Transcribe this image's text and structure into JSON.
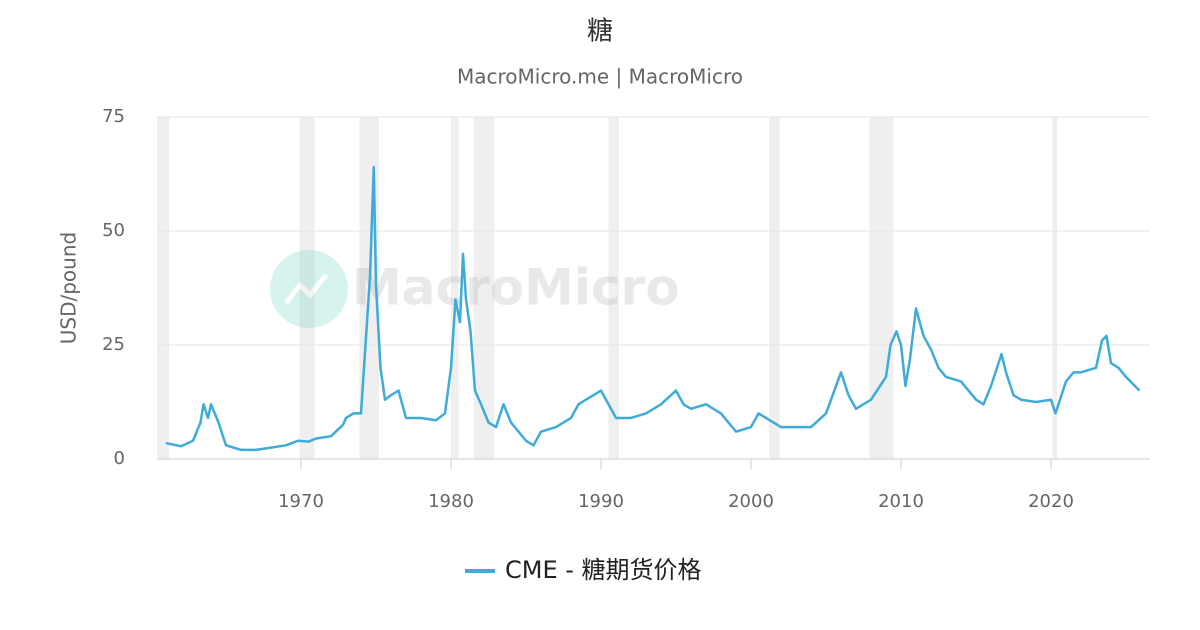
{
  "chart_data": {
    "type": "line",
    "title": "糖",
    "subtitle": "MacroMicro.me | MacroMicro",
    "watermark": "MacroMicro",
    "y_label": "USD/pound",
    "xlim": [
      1960.4,
      2026.6
    ],
    "xticks": [
      1970,
      1980,
      1990,
      2000,
      2010,
      2020
    ],
    "ylim": [
      0,
      75
    ],
    "yticks": [
      0,
      25,
      50,
      75
    ],
    "grid": true,
    "recessions": [
      [
        1960.3,
        1961.2
      ],
      [
        1969.9,
        1970.9
      ],
      [
        1973.9,
        1975.2
      ],
      [
        1980.0,
        1980.5
      ],
      [
        1981.5,
        1982.9
      ],
      [
        1990.5,
        1991.2
      ],
      [
        2001.2,
        2001.9
      ],
      [
        2007.9,
        2009.5
      ],
      [
        2020.1,
        2020.4
      ]
    ],
    "legend": "bottom",
    "x": [
      1961.0,
      1962.0,
      1962.8,
      1963.3,
      1963.5,
      1963.8,
      1964.0,
      1964.5,
      1965.0,
      1966.0,
      1967.0,
      1968.0,
      1969.0,
      1969.8,
      1970.5,
      1971.0,
      1972.0,
      1972.8,
      1973.0,
      1973.5,
      1974.0,
      1974.3,
      1974.6,
      1974.85,
      1975.0,
      1975.3,
      1975.6,
      1976.0,
      1976.5,
      1977.0,
      1978.0,
      1979.0,
      1979.6,
      1980.0,
      1980.3,
      1980.6,
      1980.8,
      1981.0,
      1981.3,
      1981.6,
      1982.0,
      1982.5,
      1983.0,
      1983.5,
      1984.0,
      1985.0,
      1985.5,
      1986.0,
      1987.0,
      1988.0,
      1988.5,
      1989.0,
      1990.0,
      1990.5,
      1991.0,
      1992.0,
      1993.0,
      1994.0,
      1995.0,
      1995.5,
      1996.0,
      1997.0,
      1998.0,
      1999.0,
      2000.0,
      2000.5,
      2001.0,
      2002.0,
      2003.0,
      2004.0,
      2005.0,
      2006.0,
      2006.5,
      2007.0,
      2008.0,
      2009.0,
      2009.3,
      2009.7,
      2010.0,
      2010.3,
      2010.6,
      2011.0,
      2011.5,
      2012.0,
      2012.5,
      2013.0,
      2014.0,
      2015.0,
      2015.5,
      2016.0,
      2016.7,
      2017.0,
      2017.5,
      2018.0,
      2019.0,
      2020.0,
      2020.3,
      2020.7,
      2021.0,
      2021.5,
      2022.0,
      2023.0,
      2023.4,
      2023.7,
      2024.0,
      2024.5,
      2025.0,
      2025.6,
      2025.9
    ],
    "series": [
      {
        "name": "CME - 糖期货价格",
        "color": "#3fabd8",
        "values": [
          3.5,
          2.8,
          4,
          8,
          12,
          9,
          12,
          8,
          3,
          2,
          2,
          2.5,
          3,
          4,
          3.8,
          4.5,
          5,
          7.5,
          9,
          10,
          10,
          25,
          40,
          64,
          38,
          20,
          13,
          14,
          15,
          9,
          9,
          8.5,
          10,
          20,
          35,
          30,
          45,
          35,
          28,
          15,
          12,
          8,
          7,
          12,
          8,
          4,
          3,
          6,
          7,
          9,
          12,
          13,
          15,
          12,
          9,
          9,
          10,
          12,
          15,
          12,
          11,
          12,
          10,
          6,
          7,
          10,
          9,
          7,
          7,
          7,
          10,
          19,
          14,
          11,
          13,
          18,
          25,
          28,
          25,
          16,
          22,
          33,
          27,
          24,
          20,
          18,
          17,
          13,
          12,
          16,
          23,
          19,
          14,
          13,
          12.5,
          13,
          10,
          14,
          17,
          19,
          19,
          20,
          26,
          27,
          21,
          20,
          18,
          16,
          15
        ]
      }
    ]
  }
}
